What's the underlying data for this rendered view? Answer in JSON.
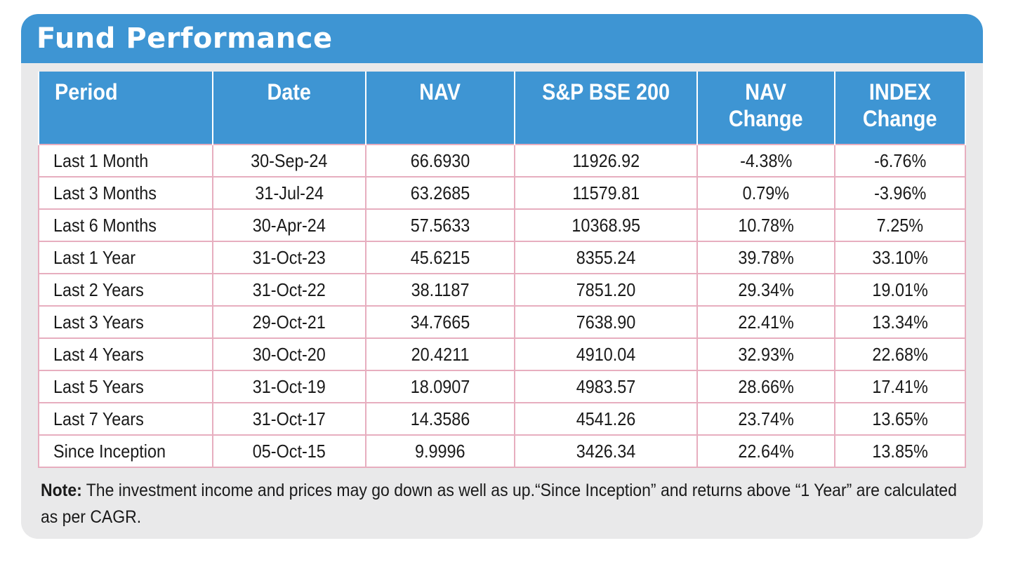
{
  "title": "Fund Performance",
  "table": {
    "headers": [
      [
        "Period"
      ],
      [
        "Date"
      ],
      [
        "NAV"
      ],
      [
        "S&P BSE 200"
      ],
      [
        "NAV",
        "Change"
      ],
      [
        "INDEX",
        "Change"
      ]
    ],
    "rows": [
      [
        "Last 1 Month",
        "30-Sep-24",
        "66.6930",
        "11926.92",
        "-4.38%",
        "-6.76%"
      ],
      [
        "Last 3 Months",
        "31-Jul-24",
        "63.2685",
        "11579.81",
        "0.79%",
        "-3.96%"
      ],
      [
        "Last 6 Months",
        "30-Apr-24",
        "57.5633",
        "10368.95",
        "10.78%",
        "7.25%"
      ],
      [
        "Last 1 Year",
        "31-Oct-23",
        "45.6215",
        "8355.24",
        "39.78%",
        "33.10%"
      ],
      [
        "Last 2 Years",
        "31-Oct-22",
        "38.1187",
        "7851.20",
        "29.34%",
        "19.01%"
      ],
      [
        "Last 3 Years",
        "29-Oct-21",
        "34.7665",
        "7638.90",
        "22.41%",
        "13.34%"
      ],
      [
        "Last 4 Years",
        "30-Oct-20",
        "20.4211",
        "4910.04",
        "32.93%",
        "22.68%"
      ],
      [
        "Last 5 Years",
        "31-Oct-19",
        "18.0907",
        "4983.57",
        "28.66%",
        "17.41%"
      ],
      [
        "Last 7 Years",
        "31-Oct-17",
        "14.3586",
        "4541.26",
        "23.74%",
        "13.65%"
      ],
      [
        "Since Inception",
        "05-Oct-15",
        "9.9996",
        "3426.34",
        "22.64%",
        "13.85%"
      ]
    ]
  },
  "note": {
    "label": "Note:",
    "text": " The investment income and prices may go down as well as up.“Since Inception” and returns above “1 Year” are calculated as per CAGR."
  },
  "colors": {
    "header_blue": "#3e95d3",
    "panel_gray": "#e9e9ea",
    "cell_border_pink": "#e7aebf"
  }
}
